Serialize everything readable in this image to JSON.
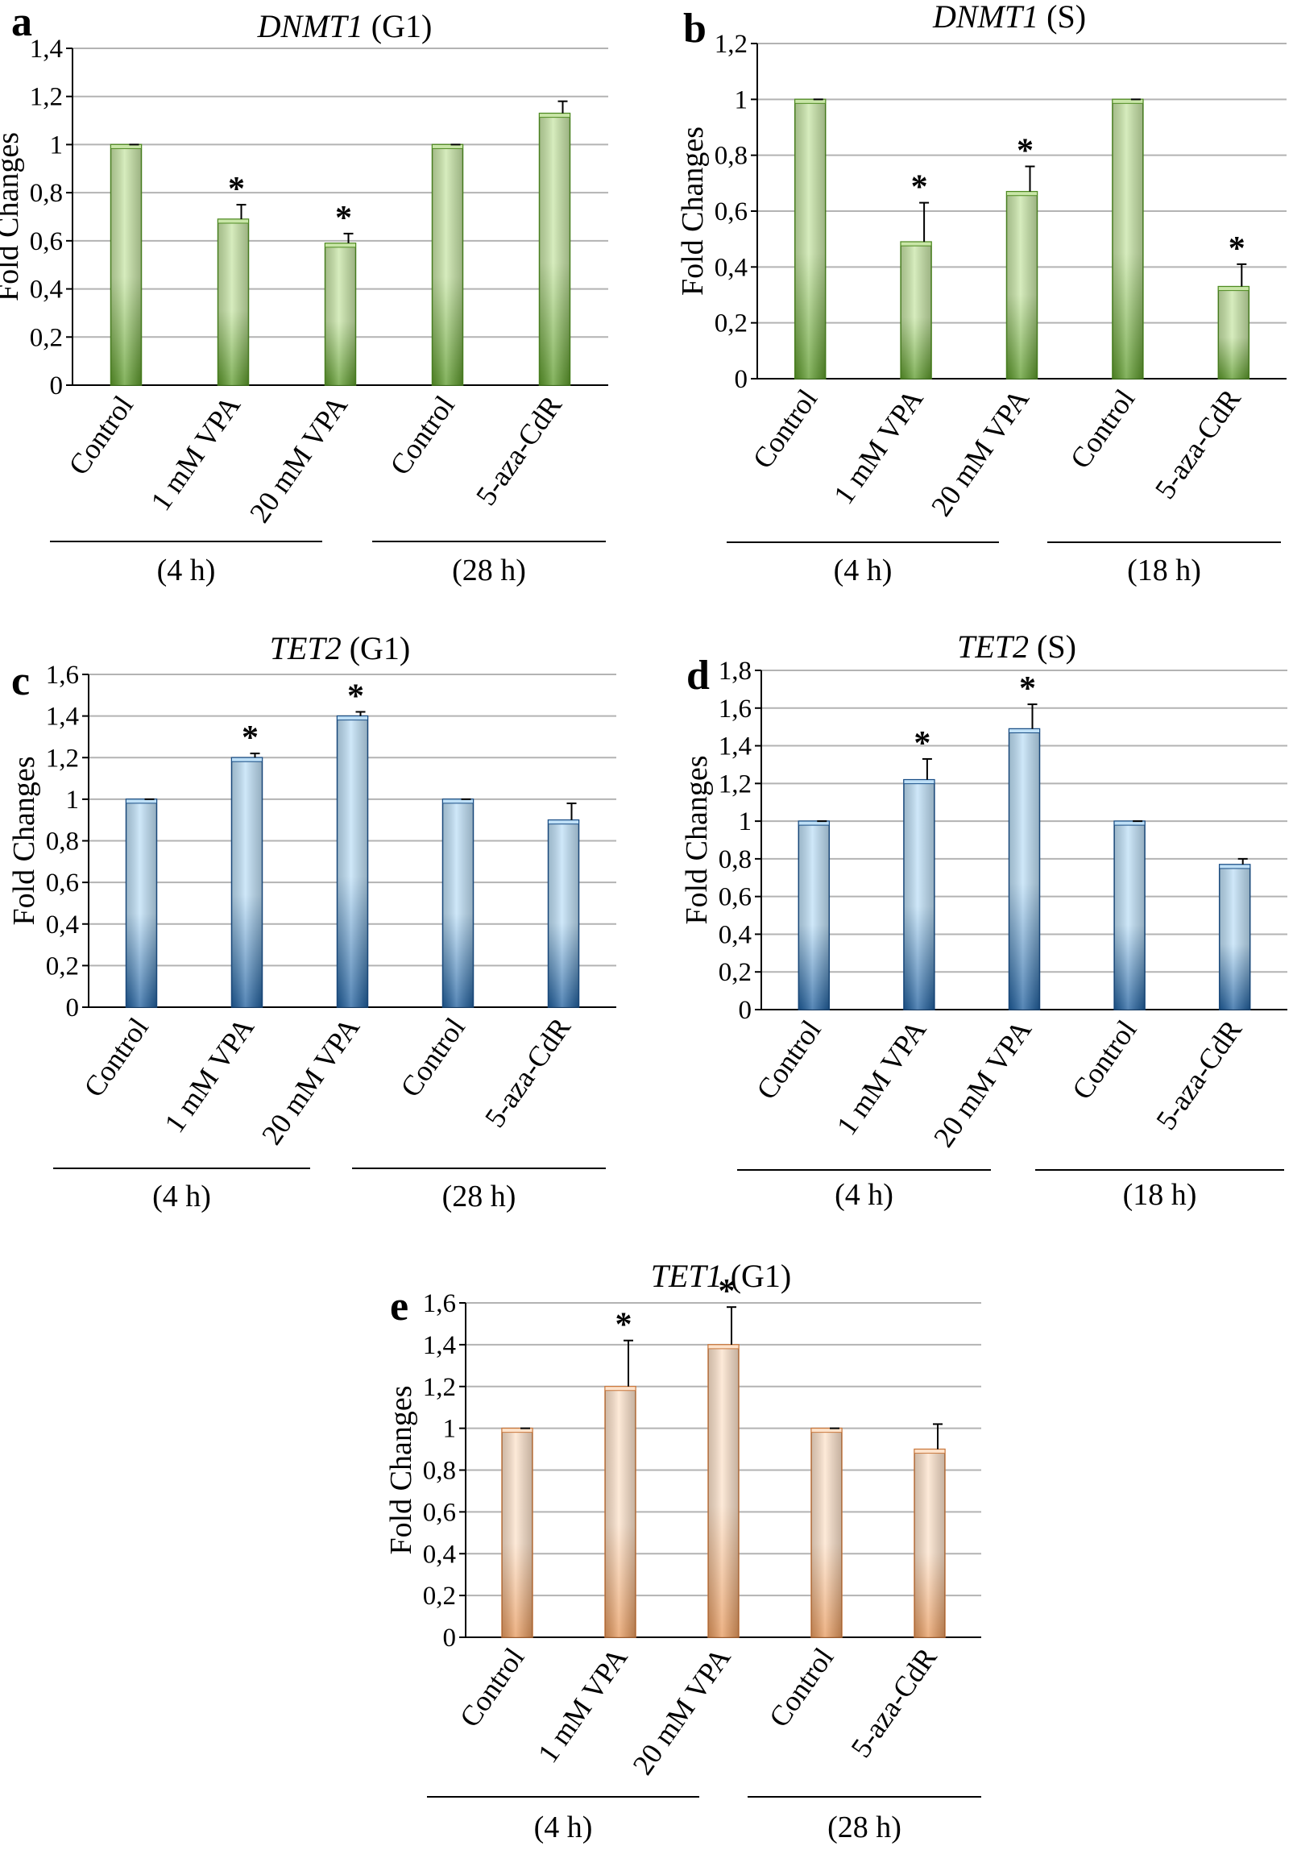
{
  "figure": {
    "panels_label": "Fold change bar charts"
  },
  "chart_data": [
    {
      "id": "a",
      "type": "bar",
      "panel_letter": "a",
      "title_gene": "DNMT1",
      "title_phase": "(G1)",
      "ylabel": "Fold Changes",
      "ylim": [
        0,
        1.4
      ],
      "yticks": [
        "0",
        "0,2",
        "0,4",
        "0,6",
        "0,8",
        "1",
        "1,2",
        "1,4"
      ],
      "categories": [
        "Control",
        "1 mM VPA",
        "20 mM VPA",
        "Control",
        "5-aza-CdR"
      ],
      "values": [
        1.0,
        0.69,
        0.59,
        1.0,
        1.13
      ],
      "errors": [
        0.0,
        0.06,
        0.04,
        0.0,
        0.05
      ],
      "significant": [
        false,
        true,
        true,
        false,
        false
      ],
      "groups": [
        {
          "label": "(4 h)",
          "span": [
            0,
            2
          ]
        },
        {
          "label": "(28 h)",
          "span": [
            3,
            4
          ]
        }
      ],
      "color": "green",
      "grid": true
    },
    {
      "id": "b",
      "type": "bar",
      "panel_letter": "b",
      "title_gene": "DNMT1",
      "title_phase": "(S)",
      "ylabel": "Fold Changes",
      "ylim": [
        0,
        1.2
      ],
      "yticks": [
        "0",
        "0,2",
        "0,4",
        "0,6",
        "0,8",
        "1",
        "1,2"
      ],
      "categories": [
        "Control",
        "1 mM VPA",
        "20 mM VPA",
        "Control",
        "5-aza-CdR"
      ],
      "values": [
        1.0,
        0.49,
        0.67,
        1.0,
        0.33
      ],
      "errors": [
        0.0,
        0.14,
        0.09,
        0.0,
        0.08
      ],
      "significant": [
        false,
        true,
        true,
        false,
        true
      ],
      "groups": [
        {
          "label": "(4 h)",
          "span": [
            0,
            2
          ]
        },
        {
          "label": "(18 h)",
          "span": [
            3,
            4
          ]
        }
      ],
      "color": "green",
      "grid": true
    },
    {
      "id": "c",
      "type": "bar",
      "panel_letter": "c",
      "title_gene": "TET2",
      "title_phase": "(G1)",
      "ylabel": "Fold Changes",
      "ylim": [
        0,
        1.6
      ],
      "yticks": [
        "0",
        "0,2",
        "0,4",
        "0,6",
        "0,8",
        "1",
        "1,2",
        "1,4",
        "1,6"
      ],
      "categories": [
        "Control",
        "1 mM VPA",
        "20 mM VPA",
        "Control",
        "5-aza-CdR"
      ],
      "values": [
        1.0,
        1.2,
        1.4,
        1.0,
        0.9
      ],
      "errors": [
        0.0,
        0.02,
        0.02,
        0.0,
        0.08
      ],
      "significant": [
        false,
        true,
        true,
        false,
        false
      ],
      "groups": [
        {
          "label": "(4 h)",
          "span": [
            0,
            2
          ]
        },
        {
          "label": "(28 h)",
          "span": [
            3,
            4
          ]
        }
      ],
      "color": "blue",
      "grid": true
    },
    {
      "id": "d",
      "type": "bar",
      "panel_letter": "d",
      "title_gene": "TET2",
      "title_phase": "(S)",
      "ylabel": "Fold Changes",
      "ylim": [
        0,
        1.8
      ],
      "yticks": [
        "0",
        "0,2",
        "0,4",
        "0,6",
        "0,8",
        "1",
        "1,2",
        "1,4",
        "1,6",
        "1,8"
      ],
      "categories": [
        "Control",
        "1 mM VPA",
        "20 mM VPA",
        "Control",
        "5-aza-CdR"
      ],
      "values": [
        1.0,
        1.22,
        1.49,
        1.0,
        0.77
      ],
      "errors": [
        0.0,
        0.11,
        0.13,
        0.0,
        0.03
      ],
      "significant": [
        false,
        true,
        true,
        false,
        false
      ],
      "groups": [
        {
          "label": "(4 h)",
          "span": [
            0,
            2
          ]
        },
        {
          "label": "(18 h)",
          "span": [
            3,
            4
          ]
        }
      ],
      "color": "blue",
      "grid": true
    },
    {
      "id": "e",
      "type": "bar",
      "panel_letter": "e",
      "title_gene": "TET1",
      "title_phase": "(G1)",
      "ylabel": "Fold Changes",
      "ylim": [
        0,
        1.6
      ],
      "yticks": [
        "0",
        "0,2",
        "0,4",
        "0,6",
        "0,8",
        "1",
        "1,2",
        "1,4",
        "1,6"
      ],
      "categories": [
        "Control",
        "1 mM VPA",
        "20 mM VPA",
        "Control",
        "5-aza-CdR"
      ],
      "values": [
        1.0,
        1.2,
        1.4,
        1.0,
        0.9
      ],
      "errors": [
        0.0,
        0.22,
        0.18,
        0.0,
        0.12
      ],
      "significant": [
        false,
        true,
        true,
        false,
        false
      ],
      "groups": [
        {
          "label": "(4 h)",
          "span": [
            0,
            2
          ]
        },
        {
          "label": "(28 h)",
          "span": [
            3,
            4
          ]
        }
      ],
      "color": "orange",
      "grid": true
    }
  ],
  "colors": {
    "green": {
      "light": "#c9e6a8",
      "dark": "#5c9a2a",
      "edge": "#4f8a22"
    },
    "blue": {
      "light": "#bfe0f7",
      "dark": "#1f5f9e",
      "edge": "#1b4f86"
    },
    "orange": {
      "light": "#fde3cc",
      "dark": "#e79a5e",
      "edge": "#c9783e"
    },
    "grid": "#b3b3b3",
    "axis": "#000000"
  }
}
